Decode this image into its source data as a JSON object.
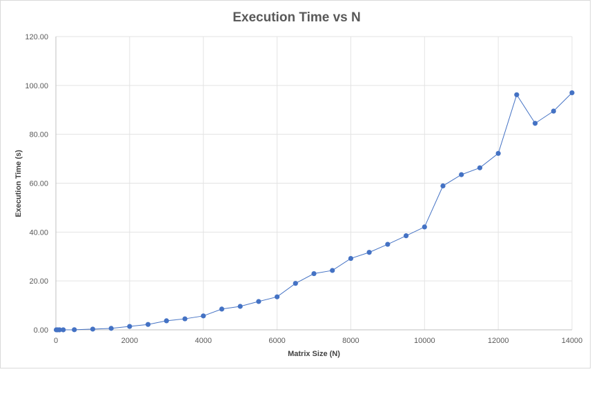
{
  "chart_data": {
    "type": "scatter",
    "title": "Execution Time vs N",
    "xlabel": "Matrix Size (N)",
    "ylabel": "Execution Time (s)",
    "xlim": [
      0,
      14000
    ],
    "ylim": [
      0,
      120
    ],
    "x_ticks": [
      "0",
      "2000",
      "4000",
      "6000",
      "8000",
      "10000",
      "12000",
      "14000"
    ],
    "y_ticks": [
      "0.00",
      "20.00",
      "40.00",
      "60.00",
      "80.00",
      "100.00",
      "120.00"
    ],
    "grid": true,
    "legend": "none",
    "series": [
      {
        "color": "#4472c4",
        "marker": "circle",
        "line": "straight",
        "points": [
          [
            10,
            0.0
          ],
          [
            50,
            0.0
          ],
          [
            100,
            0.0
          ],
          [
            200,
            0.01
          ],
          [
            500,
            0.05
          ],
          [
            1000,
            0.3
          ],
          [
            1500,
            0.6
          ],
          [
            2000,
            1.4
          ],
          [
            2500,
            2.2
          ],
          [
            3000,
            3.7
          ],
          [
            3500,
            4.5
          ],
          [
            4000,
            5.7
          ],
          [
            4500,
            8.5
          ],
          [
            5000,
            9.6
          ],
          [
            5500,
            11.6
          ],
          [
            6000,
            13.5
          ],
          [
            6500,
            19.0
          ],
          [
            7000,
            23.0
          ],
          [
            7500,
            24.3
          ],
          [
            8000,
            29.2
          ],
          [
            8500,
            31.7
          ],
          [
            9000,
            35.0
          ],
          [
            9500,
            38.5
          ],
          [
            10000,
            42.1
          ],
          [
            10500,
            58.9
          ],
          [
            11000,
            63.5
          ],
          [
            11500,
            66.3
          ],
          [
            12000,
            72.2
          ],
          [
            12500,
            96.2
          ],
          [
            13000,
            84.5
          ],
          [
            13500,
            89.5
          ],
          [
            14000,
            97.0
          ]
        ]
      }
    ]
  }
}
